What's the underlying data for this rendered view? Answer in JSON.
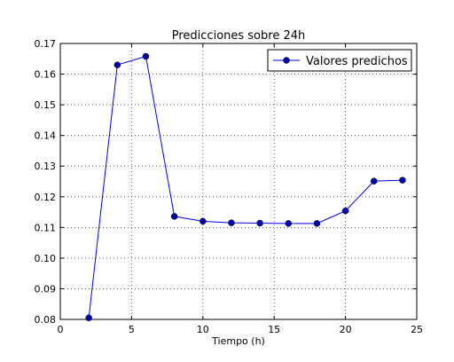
{
  "chart_data": {
    "type": "line",
    "title": "Predicciones sobre 24h",
    "xlabel": "Tiempo (h)",
    "ylabel": "",
    "xlim": [
      0,
      25
    ],
    "ylim": [
      0.08,
      0.17
    ],
    "x_ticks": [
      "0",
      "5",
      "10",
      "15",
      "20",
      "25"
    ],
    "y_ticks": [
      "0.08",
      "0.09",
      "0.10",
      "0.11",
      "0.12",
      "0.13",
      "0.14",
      "0.15",
      "0.16",
      "0.17"
    ],
    "grid": true,
    "legend_position": "top-right",
    "series": [
      {
        "name": "Valores predichos",
        "color": "#0000ff",
        "marker_color": "#0000aa",
        "x": [
          2,
          4,
          6,
          8,
          10,
          12,
          14,
          16,
          18,
          20,
          22,
          24
        ],
        "y": [
          0.0805,
          0.163,
          0.1658,
          0.1136,
          0.112,
          0.1115,
          0.1114,
          0.1113,
          0.1113,
          0.1154,
          0.1251,
          0.1254
        ]
      }
    ]
  }
}
